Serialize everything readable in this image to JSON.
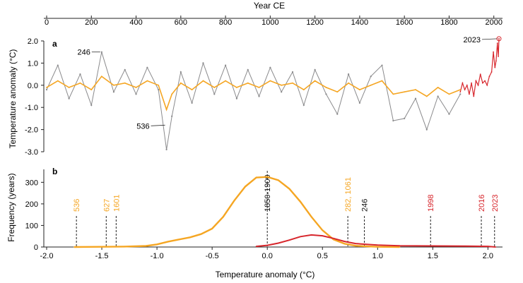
{
  "colors": {
    "annual": "#8a8a8c",
    "smoothed": "#f5a623",
    "instrumental": "#d7262c",
    "axis": "#222222"
  },
  "chart_data": [
    {
      "panel": "a",
      "type": "line",
      "title": "",
      "xlabel": "Year CE",
      "ylabel": "Temperature anomaly (°C)",
      "xlim": [
        0,
        2023
      ],
      "ylim": [
        -3.0,
        2.0
      ],
      "x_ticks": [
        "0",
        "200",
        "400",
        "600",
        "800",
        "1000",
        "1200",
        "1400",
        "1600",
        "1800",
        "2000"
      ],
      "y_ticks": [
        "2.0",
        "1.0",
        "0.0",
        "-1.0",
        "-2.0",
        "-3.0"
      ],
      "grid": false,
      "series": [
        {
          "role": "annual",
          "x": [
            0,
            50,
            100,
            150,
            200,
            246,
            300,
            350,
            400,
            450,
            500,
            536,
            560,
            600,
            650,
            700,
            750,
            800,
            850,
            900,
            950,
            1000,
            1050,
            1100,
            1150,
            1200,
            1250,
            1300,
            1350,
            1400,
            1450,
            1500,
            1550,
            1600,
            1650,
            1700,
            1750,
            1800,
            1850
          ],
          "y": [
            -0.2,
            0.9,
            -0.6,
            0.5,
            -0.9,
            1.5,
            -0.3,
            0.7,
            -0.4,
            0.8,
            -0.2,
            -2.9,
            -1.4,
            0.6,
            -0.8,
            1.0,
            -0.4,
            0.9,
            -0.6,
            0.7,
            -0.5,
            0.8,
            -0.3,
            0.6,
            -0.9,
            0.7,
            -0.4,
            -1.3,
            0.5,
            -0.8,
            0.4,
            0.9,
            -1.6,
            -1.5,
            -0.6,
            -2.0,
            -0.5,
            -1.3,
            -0.4
          ]
        },
        {
          "role": "smoothed",
          "x": [
            0,
            50,
            100,
            150,
            200,
            246,
            300,
            350,
            400,
            450,
            500,
            536,
            560,
            600,
            650,
            700,
            750,
            800,
            850,
            900,
            950,
            1000,
            1050,
            1100,
            1150,
            1200,
            1250,
            1300,
            1350,
            1400,
            1450,
            1500,
            1550,
            1600,
            1650,
            1700,
            1750,
            1800,
            1850
          ],
          "y": [
            -0.1,
            0.2,
            -0.1,
            0.1,
            -0.2,
            0.4,
            0.0,
            0.1,
            -0.1,
            0.2,
            0.0,
            -1.1,
            -0.4,
            0.1,
            -0.2,
            0.2,
            -0.1,
            0.2,
            -0.1,
            0.1,
            -0.1,
            0.2,
            0.0,
            0.1,
            -0.2,
            0.2,
            -0.1,
            -0.3,
            0.1,
            -0.2,
            0.0,
            0.2,
            -0.4,
            -0.3,
            -0.2,
            -0.5,
            -0.1,
            -0.4,
            -0.2
          ]
        },
        {
          "role": "instrumental",
          "x": [
            1850,
            1860,
            1870,
            1880,
            1890,
            1900,
            1910,
            1920,
            1930,
            1940,
            1950,
            1960,
            1970,
            1980,
            1990,
            1998,
            2005,
            2010,
            2016,
            2020,
            2023
          ],
          "y": [
            -0.3,
            0.1,
            -0.2,
            0.0,
            -0.4,
            0.1,
            -0.5,
            0.2,
            0.0,
            0.5,
            0.1,
            0.2,
            0.0,
            0.4,
            0.6,
            1.5,
            0.8,
            1.1,
            1.9,
            1.3,
            2.1
          ]
        }
      ],
      "annotations": [
        {
          "label": "246",
          "x": 246,
          "y": 1.5
        },
        {
          "label": "536",
          "x": 536,
          "y": -1.8
        },
        {
          "label": "2023",
          "x": 2023,
          "y": 2.1
        }
      ]
    },
    {
      "panel": "b",
      "type": "area",
      "title": "",
      "xlabel": "Temperature anomaly (°C)",
      "ylabel": "Frequency (years)",
      "xlim": [
        -2.0,
        2.1
      ],
      "ylim": [
        0,
        360
      ],
      "x_ticks": [
        "-2.0",
        "-1.5",
        "-1.0",
        "-0.5",
        "0.0",
        "0.5",
        "1.0",
        "1.5",
        "2.0"
      ],
      "y_ticks": [
        "0",
        "100",
        "200",
        "300"
      ],
      "grid": false,
      "series": [
        {
          "role": "smoothed",
          "x": [
            -1.75,
            -1.5,
            -1.3,
            -1.1,
            -1.0,
            -0.9,
            -0.8,
            -0.7,
            -0.6,
            -0.5,
            -0.4,
            -0.3,
            -0.2,
            -0.1,
            0.0,
            0.1,
            0.2,
            0.3,
            0.4,
            0.5,
            0.6,
            0.7,
            0.8,
            0.9,
            1.0,
            1.2
          ],
          "y": [
            0,
            1,
            2,
            5,
            12,
            25,
            35,
            45,
            60,
            85,
            140,
            215,
            280,
            322,
            325,
            310,
            270,
            210,
            140,
            78,
            35,
            15,
            6,
            3,
            1,
            0
          ]
        },
        {
          "role": "instrumental",
          "x": [
            -0.1,
            0.0,
            0.1,
            0.2,
            0.3,
            0.4,
            0.5,
            0.6,
            0.7,
            0.8,
            0.9,
            1.0,
            1.2,
            1.5,
            1.8,
            2.0,
            2.07
          ],
          "y": [
            3,
            8,
            18,
            32,
            48,
            56,
            52,
            40,
            26,
            16,
            12,
            9,
            6,
            5,
            4,
            3,
            0
          ]
        }
      ],
      "markers": [
        {
          "label": "536",
          "x": -1.73,
          "role": "smoothed"
        },
        {
          "label": "627",
          "x": -1.46,
          "role": "smoothed"
        },
        {
          "label": "1601",
          "x": -1.37,
          "role": "smoothed"
        },
        {
          "label": "1850-1900",
          "x": 0.0,
          "role": "reference"
        },
        {
          "label": "282, 1061",
          "x": 0.73,
          "role": "smoothed"
        },
        {
          "label": "246",
          "x": 0.88,
          "role": "smoothed-black"
        },
        {
          "label": "1998",
          "x": 1.48,
          "role": "instrumental"
        },
        {
          "label": "2016",
          "x": 1.94,
          "role": "instrumental"
        },
        {
          "label": "2023",
          "x": 2.06,
          "role": "instrumental"
        }
      ]
    }
  ]
}
